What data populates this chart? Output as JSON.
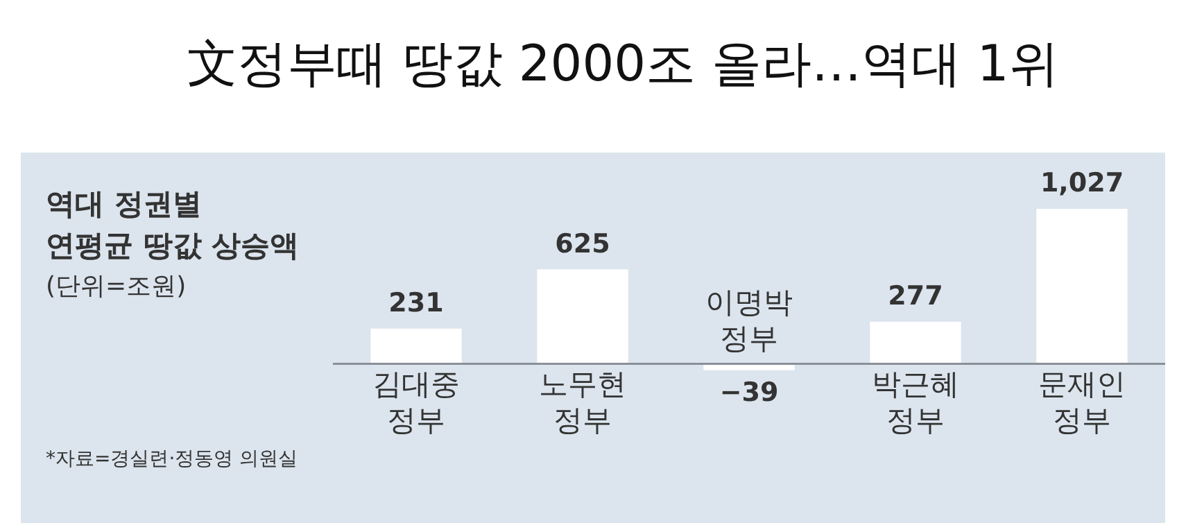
{
  "chart_data": {
    "type": "bar",
    "title": "文정부때 땅값 2000조 올라…역대 1위",
    "subtitle": "역대 정권별\n연평균 땅값 상승액\n(단위=조원)",
    "categories": [
      "김대중\n정부",
      "노무현\n정부",
      "이명박\n정부",
      "박근혜\n정부",
      "문재인\n정부"
    ],
    "values": [
      231,
      625,
      -39,
      277,
      1027
    ],
    "value_labels": [
      "231",
      "625",
      "−39",
      "277",
      "1,027"
    ],
    "color": "#ffffff",
    "annotations": [
      "*자료=경실련·정동영 의원실"
    ]
  }
}
